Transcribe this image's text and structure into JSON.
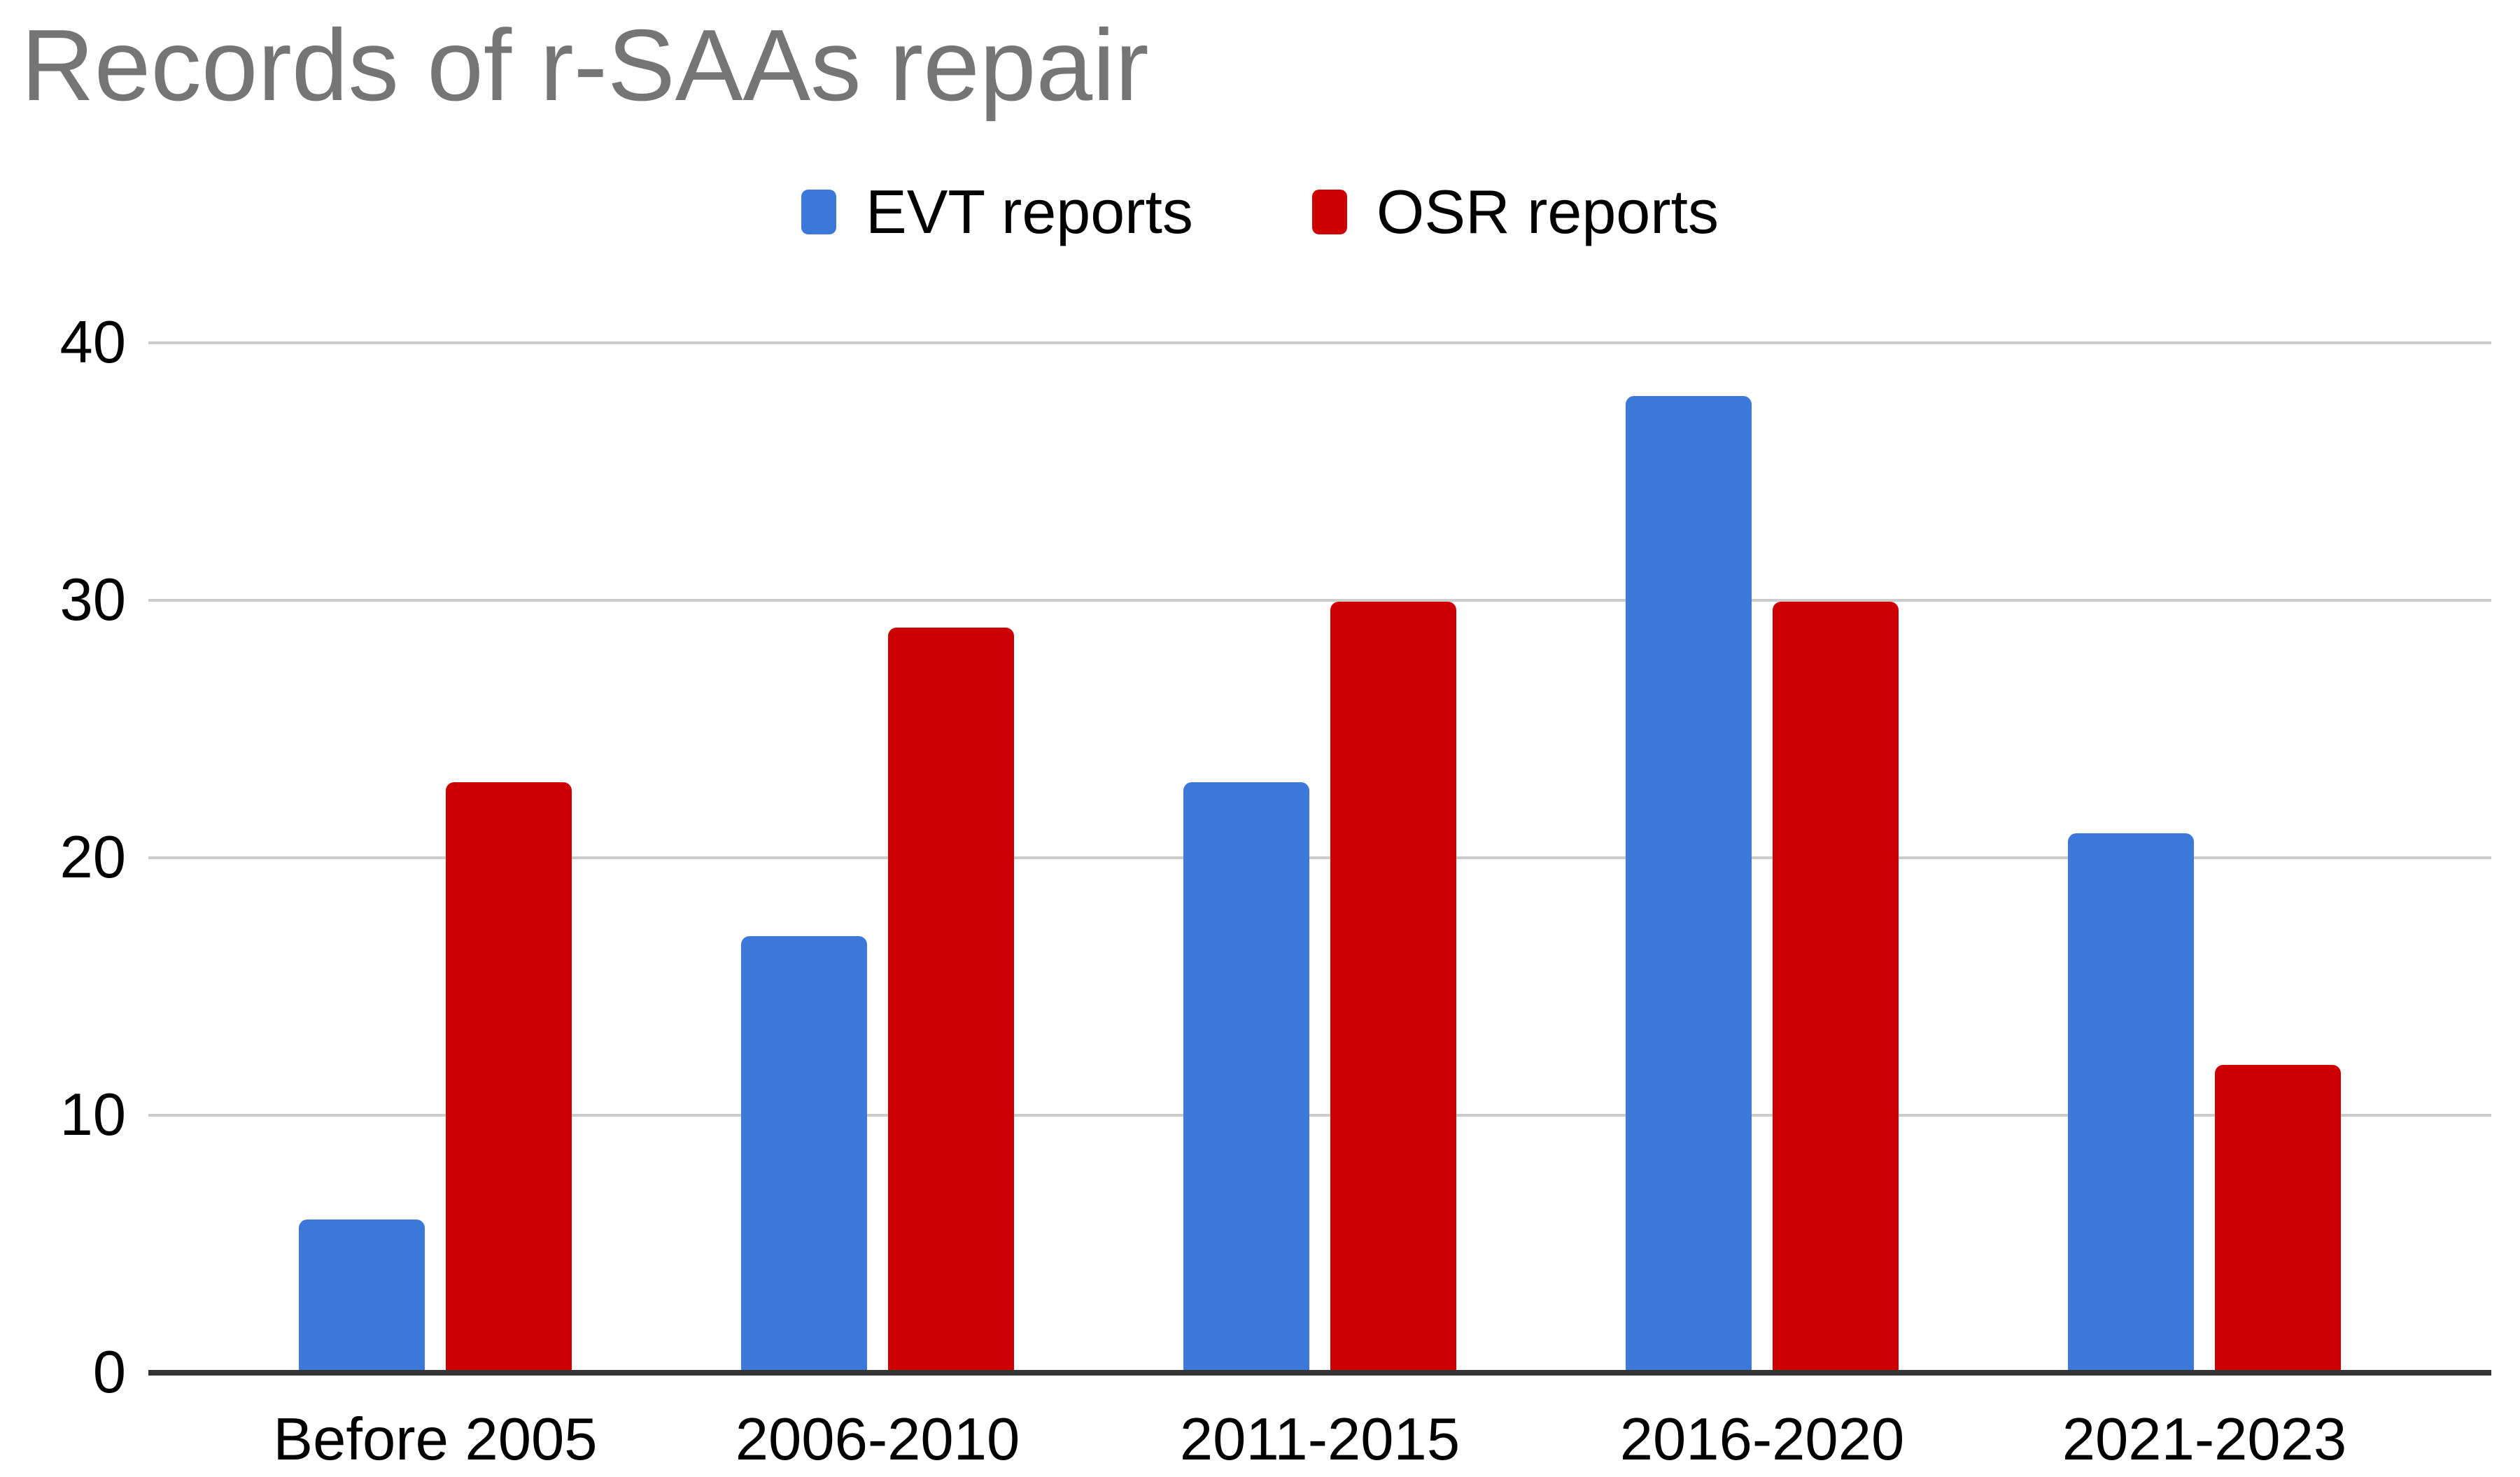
{
  "title": "Records of r-SAAs repair",
  "colors": {
    "title": "#757575",
    "axis": "#333333",
    "grid": "#cccccc",
    "tick_label": "#000000",
    "evt": "#3c78d8",
    "osr": "#cc0000",
    "background": "#ffffff"
  },
  "legend": {
    "items": [
      {
        "label": "EVT reports"
      },
      {
        "label": "OSR reports"
      }
    ]
  },
  "chart_data": {
    "type": "bar",
    "title": "Records of r-SAAs repair",
    "categories": [
      "Before 2005",
      "2006-2010",
      "2011-2015",
      "2016-2020",
      "2021-2023"
    ],
    "series": [
      {
        "name": "EVT reports",
        "color": "#3c78d8",
        "values": [
          6,
          17,
          23,
          38,
          21
        ]
      },
      {
        "name": "OSR reports",
        "color": "#cc0000",
        "values": [
          23,
          29,
          30,
          30,
          12
        ]
      }
    ],
    "xlabel": "",
    "ylabel": "",
    "ylim": [
      0,
      40
    ],
    "yticks": [
      0,
      10,
      20,
      30,
      40
    ],
    "grid": true,
    "legend_position": "top"
  }
}
